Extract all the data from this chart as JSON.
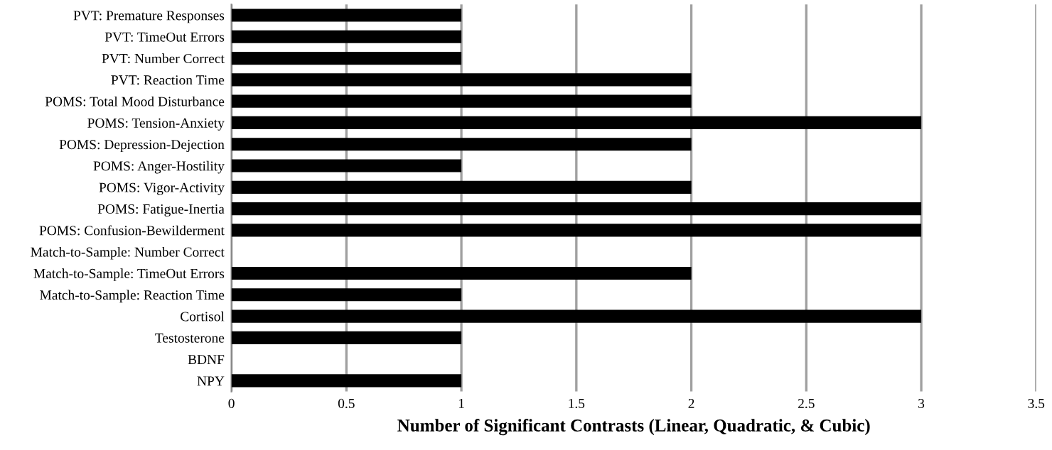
{
  "chart_data": {
    "type": "bar",
    "orientation": "horizontal",
    "xlabel": "Number of Significant Contrasts (Linear, Quadratic, & Cubic)",
    "categories": [
      "PVT: Premature Responses",
      "PVT: TimeOut Errors",
      "PVT: Number Correct",
      "PVT: Reaction Time",
      "POMS: Total Mood Disturbance",
      "POMS: Tension-Anxiety",
      "POMS: Depression-Dejection",
      "POMS: Anger-Hostility",
      "POMS: Vigor-Activity",
      "POMS: Fatigue-Inertia",
      "POMS: Confusion-Bewilderment",
      "Match-to-Sample: Number Correct",
      "Match-to-Sample: TimeOut Errors",
      "Match-to-Sample: Reaction Time",
      "Cortisol",
      "Testosterone",
      "BDNF",
      "NPY"
    ],
    "values": [
      1,
      1,
      1,
      2,
      2,
      3,
      2,
      1,
      2,
      3,
      3,
      0,
      2,
      1,
      3,
      1,
      0,
      1
    ],
    "color": "#000000",
    "xlim": [
      0,
      3.5
    ],
    "xticks": [
      0,
      0.5,
      1,
      1.5,
      2,
      2.5,
      3,
      3.5
    ],
    "grid": "x"
  }
}
